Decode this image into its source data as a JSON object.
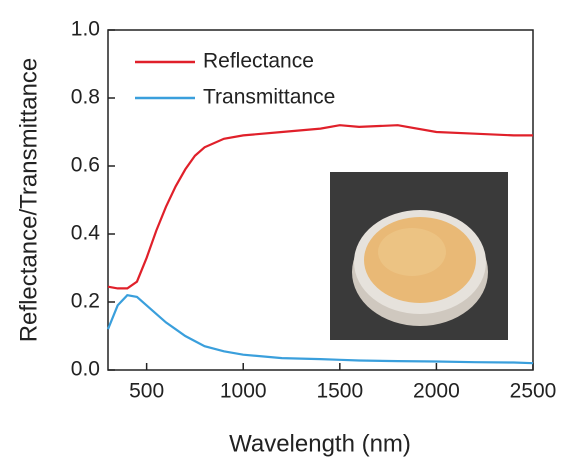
{
  "chart_data": {
    "type": "line",
    "x_label": "Wavelength (nm)",
    "y_label": "Reflectance/Transmittance",
    "x": [
      300,
      350,
      400,
      450,
      500,
      550,
      600,
      650,
      700,
      750,
      800,
      900,
      1000,
      1200,
      1400,
      1500,
      1600,
      1800,
      2000,
      2200,
      2400,
      2500
    ],
    "series": [
      {
        "name": "Reflectance",
        "color": "#e0202a",
        "values": [
          0.245,
          0.24,
          0.24,
          0.26,
          0.33,
          0.41,
          0.48,
          0.54,
          0.59,
          0.63,
          0.655,
          0.68,
          0.69,
          0.7,
          0.71,
          0.72,
          0.715,
          0.72,
          0.7,
          0.695,
          0.69,
          0.69
        ]
      },
      {
        "name": "Transmittance",
        "color": "#3a9fdc",
        "values": [
          0.12,
          0.19,
          0.22,
          0.215,
          0.19,
          0.165,
          0.14,
          0.12,
          0.1,
          0.085,
          0.07,
          0.055,
          0.045,
          0.035,
          0.032,
          0.03,
          0.028,
          0.026,
          0.025,
          0.023,
          0.022,
          0.02
        ]
      }
    ],
    "xlim": [
      300,
      2500
    ],
    "xticks": [
      500,
      1000,
      1500,
      2000,
      2500
    ],
    "ylim": [
      0,
      1
    ],
    "yticks": [
      {
        "value": 0,
        "label": "0.0"
      },
      {
        "value": 0.2,
        "label": "0.2"
      },
      {
        "value": 0.4,
        "label": "0.4"
      },
      {
        "value": 0.6,
        "label": "0.6"
      },
      {
        "value": 0.8,
        "label": "0.8"
      },
      {
        "value": 1,
        "label": "1.0"
      }
    ],
    "legend": "upper-left"
  }
}
